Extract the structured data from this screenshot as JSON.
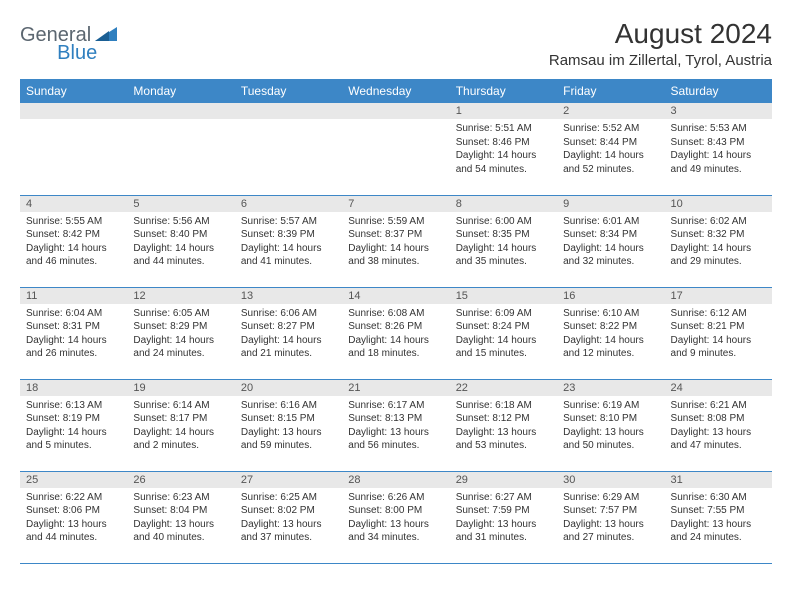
{
  "logo": {
    "text1": "General",
    "text2": "Blue"
  },
  "title": "August 2024",
  "location": "Ramsau im Zillertal, Tyrol, Austria",
  "header_bg": "#3d87c7",
  "header_fg": "#ffffff",
  "daynum_bg": "#e8e8e8",
  "row_border": "#3d87c7",
  "weekdays": [
    "Sunday",
    "Monday",
    "Tuesday",
    "Wednesday",
    "Thursday",
    "Friday",
    "Saturday"
  ],
  "weeks": [
    [
      null,
      null,
      null,
      null,
      {
        "n": "1",
        "sr": "5:51 AM",
        "ss": "8:46 PM",
        "dl": "14 hours and 54 minutes."
      },
      {
        "n": "2",
        "sr": "5:52 AM",
        "ss": "8:44 PM",
        "dl": "14 hours and 52 minutes."
      },
      {
        "n": "3",
        "sr": "5:53 AM",
        "ss": "8:43 PM",
        "dl": "14 hours and 49 minutes."
      }
    ],
    [
      {
        "n": "4",
        "sr": "5:55 AM",
        "ss": "8:42 PM",
        "dl": "14 hours and 46 minutes."
      },
      {
        "n": "5",
        "sr": "5:56 AM",
        "ss": "8:40 PM",
        "dl": "14 hours and 44 minutes."
      },
      {
        "n": "6",
        "sr": "5:57 AM",
        "ss": "8:39 PM",
        "dl": "14 hours and 41 minutes."
      },
      {
        "n": "7",
        "sr": "5:59 AM",
        "ss": "8:37 PM",
        "dl": "14 hours and 38 minutes."
      },
      {
        "n": "8",
        "sr": "6:00 AM",
        "ss": "8:35 PM",
        "dl": "14 hours and 35 minutes."
      },
      {
        "n": "9",
        "sr": "6:01 AM",
        "ss": "8:34 PM",
        "dl": "14 hours and 32 minutes."
      },
      {
        "n": "10",
        "sr": "6:02 AM",
        "ss": "8:32 PM",
        "dl": "14 hours and 29 minutes."
      }
    ],
    [
      {
        "n": "11",
        "sr": "6:04 AM",
        "ss": "8:31 PM",
        "dl": "14 hours and 26 minutes."
      },
      {
        "n": "12",
        "sr": "6:05 AM",
        "ss": "8:29 PM",
        "dl": "14 hours and 24 minutes."
      },
      {
        "n": "13",
        "sr": "6:06 AM",
        "ss": "8:27 PM",
        "dl": "14 hours and 21 minutes."
      },
      {
        "n": "14",
        "sr": "6:08 AM",
        "ss": "8:26 PM",
        "dl": "14 hours and 18 minutes."
      },
      {
        "n": "15",
        "sr": "6:09 AM",
        "ss": "8:24 PM",
        "dl": "14 hours and 15 minutes."
      },
      {
        "n": "16",
        "sr": "6:10 AM",
        "ss": "8:22 PM",
        "dl": "14 hours and 12 minutes."
      },
      {
        "n": "17",
        "sr": "6:12 AM",
        "ss": "8:21 PM",
        "dl": "14 hours and 9 minutes."
      }
    ],
    [
      {
        "n": "18",
        "sr": "6:13 AM",
        "ss": "8:19 PM",
        "dl": "14 hours and 5 minutes."
      },
      {
        "n": "19",
        "sr": "6:14 AM",
        "ss": "8:17 PM",
        "dl": "14 hours and 2 minutes."
      },
      {
        "n": "20",
        "sr": "6:16 AM",
        "ss": "8:15 PM",
        "dl": "13 hours and 59 minutes."
      },
      {
        "n": "21",
        "sr": "6:17 AM",
        "ss": "8:13 PM",
        "dl": "13 hours and 56 minutes."
      },
      {
        "n": "22",
        "sr": "6:18 AM",
        "ss": "8:12 PM",
        "dl": "13 hours and 53 minutes."
      },
      {
        "n": "23",
        "sr": "6:19 AM",
        "ss": "8:10 PM",
        "dl": "13 hours and 50 minutes."
      },
      {
        "n": "24",
        "sr": "6:21 AM",
        "ss": "8:08 PM",
        "dl": "13 hours and 47 minutes."
      }
    ],
    [
      {
        "n": "25",
        "sr": "6:22 AM",
        "ss": "8:06 PM",
        "dl": "13 hours and 44 minutes."
      },
      {
        "n": "26",
        "sr": "6:23 AM",
        "ss": "8:04 PM",
        "dl": "13 hours and 40 minutes."
      },
      {
        "n": "27",
        "sr": "6:25 AM",
        "ss": "8:02 PM",
        "dl": "13 hours and 37 minutes."
      },
      {
        "n": "28",
        "sr": "6:26 AM",
        "ss": "8:00 PM",
        "dl": "13 hours and 34 minutes."
      },
      {
        "n": "29",
        "sr": "6:27 AM",
        "ss": "7:59 PM",
        "dl": "13 hours and 31 minutes."
      },
      {
        "n": "30",
        "sr": "6:29 AM",
        "ss": "7:57 PM",
        "dl": "13 hours and 27 minutes."
      },
      {
        "n": "31",
        "sr": "6:30 AM",
        "ss": "7:55 PM",
        "dl": "13 hours and 24 minutes."
      }
    ]
  ],
  "labels": {
    "sunrise": "Sunrise: ",
    "sunset": "Sunset: ",
    "daylight": "Daylight: "
  }
}
